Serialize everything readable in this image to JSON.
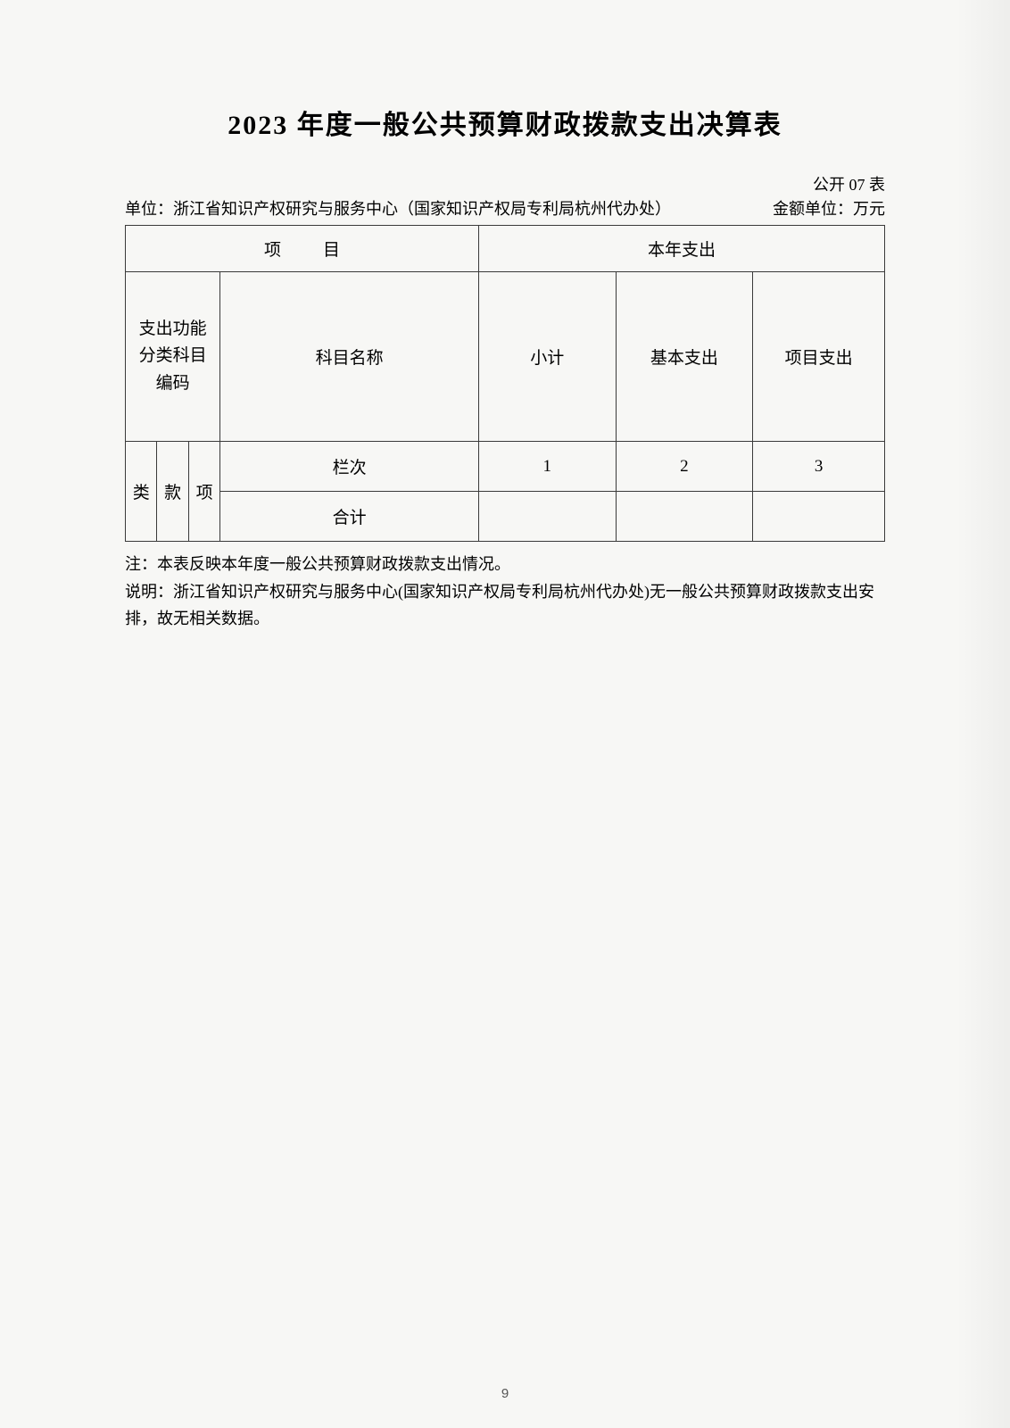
{
  "title": "2023 年度一般公共预算财政拨款支出决算表",
  "header": {
    "unit_label": "单位：",
    "unit_name": "浙江省知识产权研究与服务中心（国家知识产权局专利局杭州代办处）",
    "table_code": "公开 07 表",
    "amount_unit": "金额单位：万元"
  },
  "table": {
    "project_header": "项　目",
    "this_year_header": "本年支出",
    "code_header_lines": [
      "支出功能",
      "分类科目",
      "编码"
    ],
    "subject_name": "科目名称",
    "subtotal": "小计",
    "basic_expense": "基本支出",
    "project_expense": "项目支出",
    "lei": "类",
    "kuan": "款",
    "xiang": "项",
    "lanci": "栏次",
    "col_nums": [
      "1",
      "2",
      "3"
    ],
    "heji": "合计",
    "heji_values": [
      "",
      "",
      ""
    ]
  },
  "notes": {
    "note1": "注：本表反映本年度一般公共预算财政拨款支出情况。",
    "note2": "说明：浙江省知识产权研究与服务中心(国家知识产权局专利局杭州代办处)无一般公共预算财政拨款支出安排，故无相关数据。"
  },
  "page_number": "9"
}
